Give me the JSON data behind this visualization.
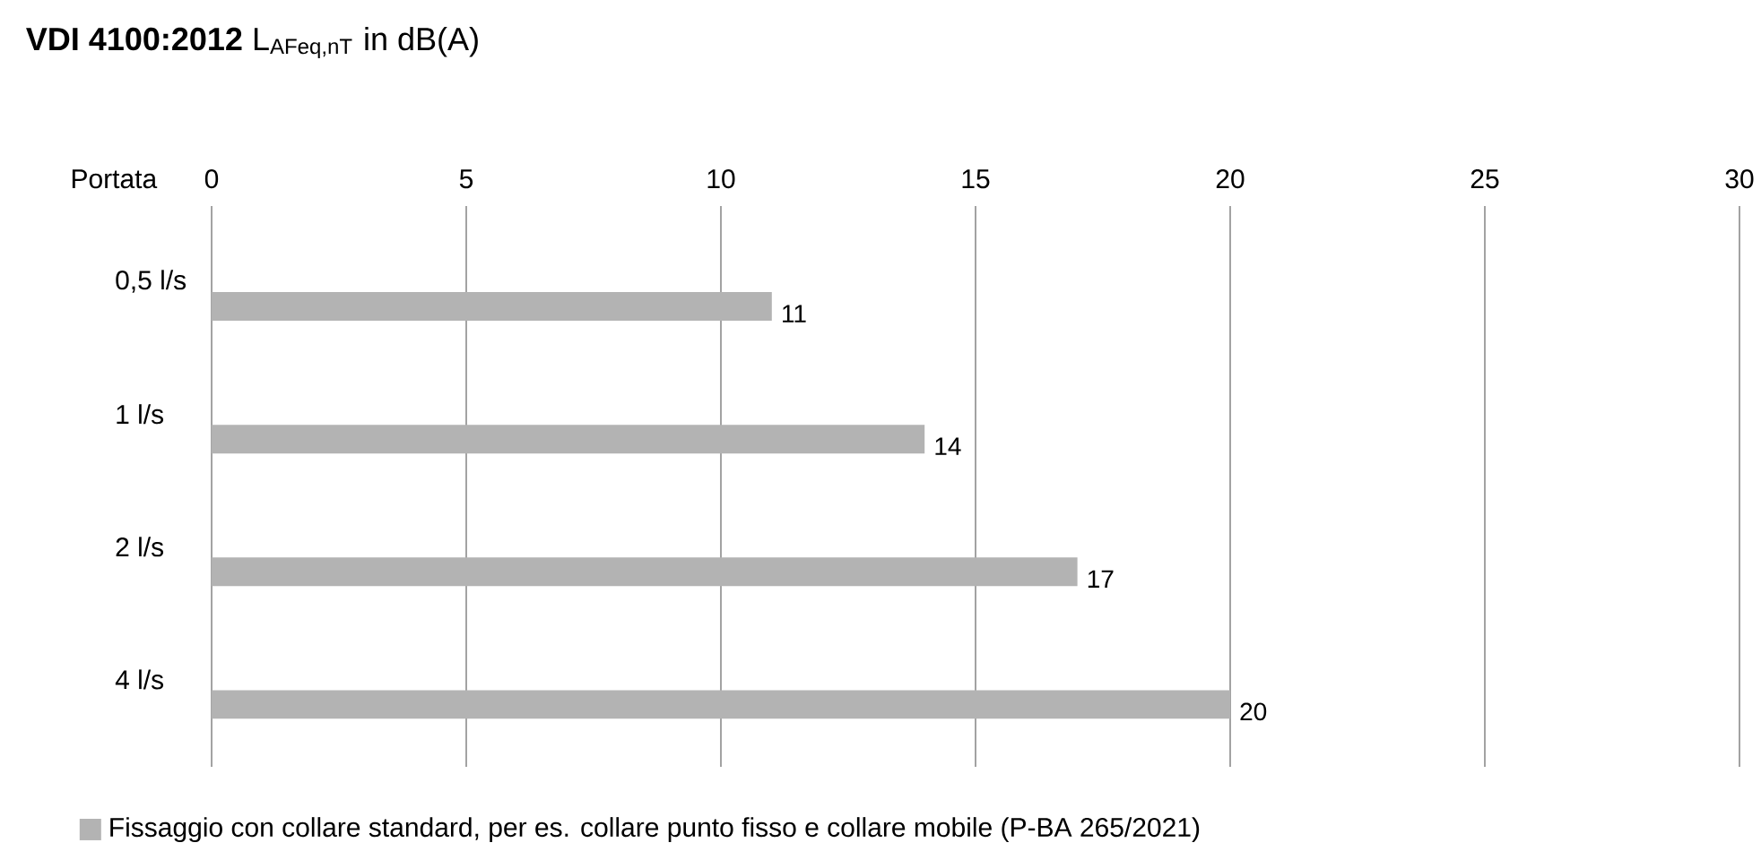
{
  "chart_data": {
    "type": "bar",
    "orientation": "horizontal",
    "title": "**VDI 4100:2012**   L$_{AFeq,nT}$ in dB(A)",
    "ylabel": "Portata",
    "categories": [
      "0,5 l/s",
      "1 l/s",
      "2 l/s",
      "4 l/s"
    ],
    "series": [
      {
        "name": "Fissaggio con collare standard, per es. collare punto fisso e collare mobile (P-BA 265/2021)",
        "color": "#b3b3b3",
        "values": [
          11,
          14,
          17,
          20
        ]
      }
    ],
    "xlim": [
      0,
      30
    ],
    "xticks": [
      0,
      5,
      10,
      15,
      20,
      25,
      30
    ],
    "grid": "x",
    "legend": "bottom left",
    "data_labels": true
  }
}
